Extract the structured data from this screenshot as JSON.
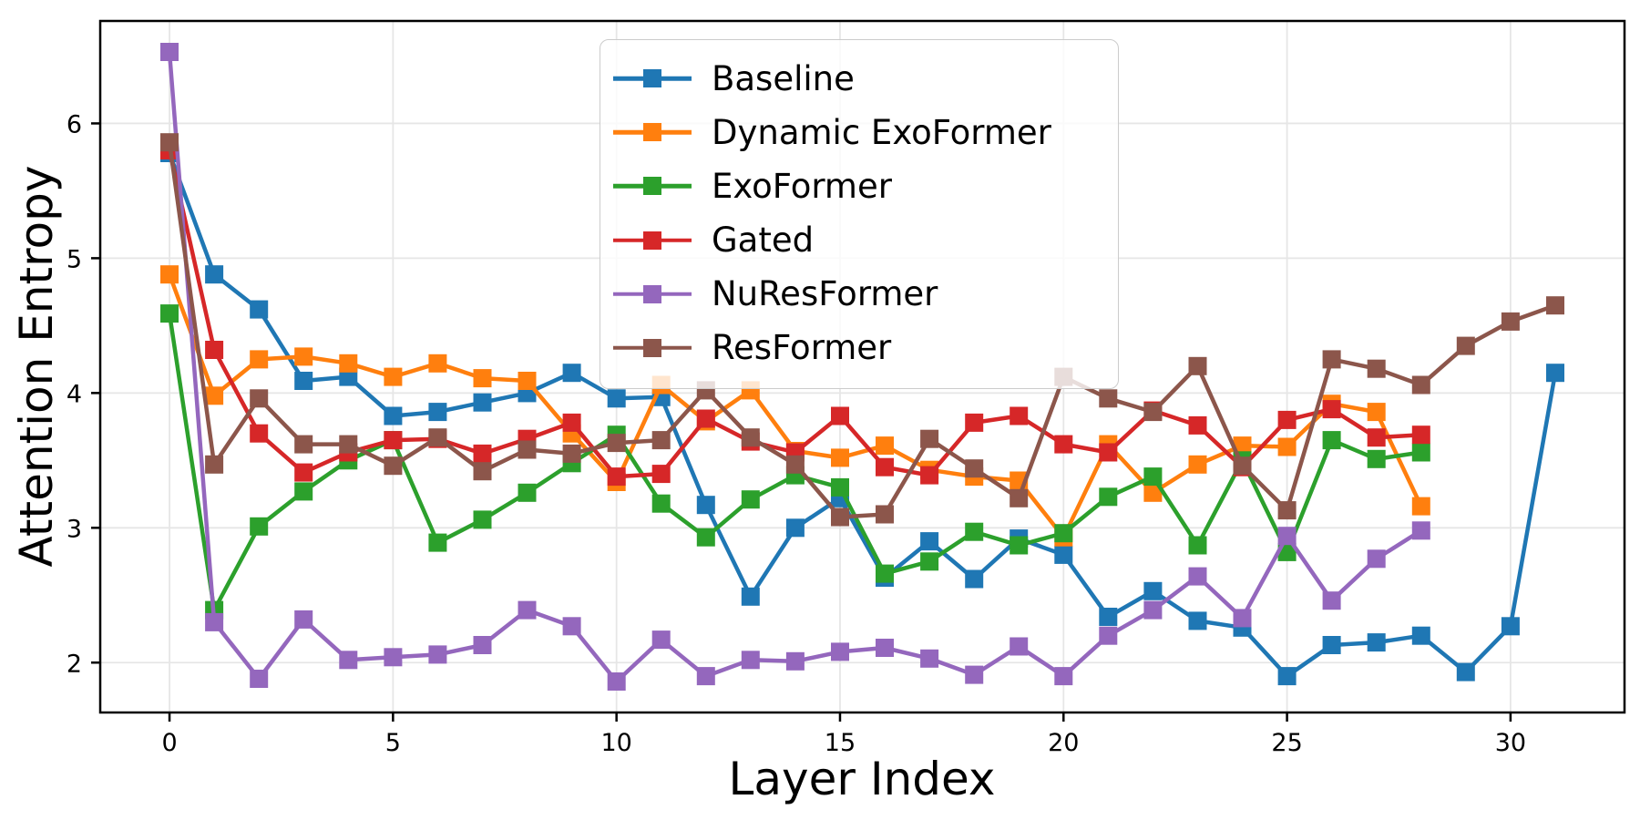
{
  "chart_data": {
    "type": "line",
    "title": "",
    "xlabel": "Layer Index",
    "ylabel": "Attention Entropy",
    "x_ticks": [
      0,
      5,
      10,
      15,
      20,
      25,
      30
    ],
    "y_ticks": [
      2,
      3,
      4,
      5,
      6
    ],
    "xlim": [
      -1.55,
      32.55
    ],
    "ylim": [
      1.63,
      6.76
    ],
    "grid": true,
    "legend_position": "upper center-left",
    "x_unit": "layer index (0,1,2,... per point)",
    "marker": "square",
    "series": [
      {
        "name": "Baseline",
        "color": "#1f77b4",
        "values": [
          5.78,
          4.88,
          4.62,
          4.09,
          4.12,
          3.83,
          3.86,
          3.93,
          4.0,
          4.15,
          3.96,
          3.97,
          3.17,
          2.49,
          3.0,
          3.22,
          2.63,
          2.9,
          2.62,
          2.92,
          2.8,
          2.34,
          2.53,
          2.31,
          2.26,
          1.9,
          2.13,
          2.15,
          2.2,
          1.93,
          2.27,
          4.15
        ]
      },
      {
        "name": "Dynamic ExoFormer",
        "color": "#ff7f0e",
        "values": [
          4.88,
          3.98,
          4.25,
          4.27,
          4.22,
          4.12,
          4.22,
          4.11,
          4.09,
          3.7,
          3.34,
          4.06,
          3.79,
          4.02,
          3.57,
          3.52,
          3.61,
          3.43,
          3.38,
          3.35,
          2.93,
          3.62,
          3.26,
          3.47,
          3.61,
          3.6,
          3.92,
          3.86,
          3.16
        ]
      },
      {
        "name": "ExoFormer",
        "color": "#2ca02c",
        "values": [
          4.59,
          2.39,
          3.01,
          3.27,
          3.5,
          3.65,
          2.89,
          3.06,
          3.26,
          3.48,
          3.69,
          3.18,
          2.93,
          3.21,
          3.39,
          3.3,
          2.66,
          2.75,
          2.97,
          2.87,
          2.96,
          3.23,
          3.38,
          2.87,
          3.5,
          2.82,
          3.65,
          3.51,
          3.56
        ]
      },
      {
        "name": "Gated",
        "color": "#d62728",
        "values": [
          5.8,
          4.32,
          3.7,
          3.41,
          3.56,
          3.65,
          3.66,
          3.55,
          3.66,
          3.78,
          3.38,
          3.4,
          3.81,
          3.64,
          3.56,
          3.83,
          3.45,
          3.39,
          3.78,
          3.83,
          3.62,
          3.56,
          3.87,
          3.76,
          3.45,
          3.8,
          3.88,
          3.67,
          3.69
        ]
      },
      {
        "name": "NuResFormer",
        "color": "#9467bd",
        "values": [
          6.53,
          2.3,
          1.88,
          2.32,
          2.02,
          2.04,
          2.06,
          2.13,
          2.39,
          2.27,
          1.86,
          2.17,
          1.9,
          2.02,
          2.01,
          2.08,
          2.11,
          2.03,
          1.91,
          2.12,
          1.9,
          2.2,
          2.39,
          2.64,
          2.33,
          2.94,
          2.46,
          2.77,
          2.98
        ]
      },
      {
        "name": "ResFormer",
        "color": "#8c564b",
        "values": [
          5.86,
          3.47,
          3.96,
          3.62,
          3.62,
          3.46,
          3.67,
          3.42,
          3.58,
          3.55,
          3.63,
          3.65,
          4.02,
          3.67,
          3.47,
          3.08,
          3.1,
          3.66,
          3.44,
          3.22,
          4.12,
          3.96,
          3.86,
          4.2,
          3.46,
          3.13,
          4.25,
          4.18,
          4.06,
          4.35,
          4.53,
          4.65
        ]
      }
    ]
  },
  "style": {
    "grid_color": "#e6e6e6",
    "spine_color": "#000000",
    "tick_label_color": "#000000",
    "legend_border_color": "#cccccc"
  }
}
